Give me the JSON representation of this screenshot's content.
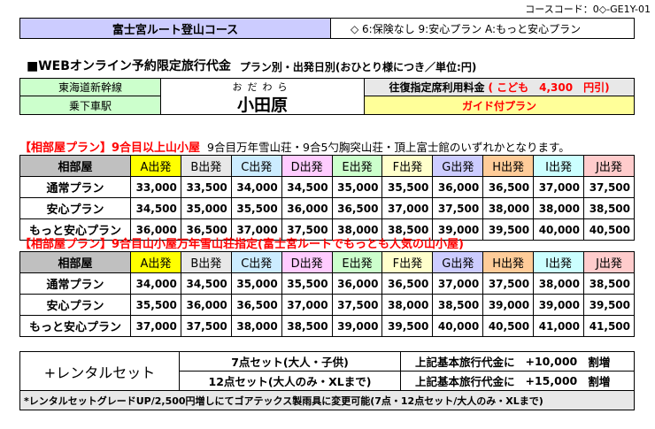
{
  "course_code": "コースコード：0◇-GE1Y-01",
  "course_title": "富士宮ルート登山コース",
  "course_notes": "◇ 6:保険なし 9:安心プラン A:もっと安心プラン",
  "price_heading": "■WEBオンライン予約限定旅行代金",
  "price_subheading": "プラン別・出発日別(おひとり様につき／単位:円)",
  "station": {
    "line_label": "東海道新幹線",
    "boarding_label": "乗下車駅",
    "furigana": "おだわら",
    "name": "小田原",
    "fare_label": "往復指定席利用料金",
    "child_discount": "( こども　4,300　円引)",
    "guide_plan": "ガイド付プラン"
  },
  "section1": {
    "title": "【相部屋プラン】9合目以上山小屋",
    "note": "9合目万年雪山荘・9合5勺胸突山荘・頂上富士館のいずれかとなります。"
  },
  "section2": {
    "title": "【相部屋プラン】9合目山小屋万年雪山荘指定(富士宮ルートでもっとも人気の山小屋)"
  },
  "table_header": {
    "corner": "相部屋",
    "departures": [
      "A出発",
      "B出発",
      "C出発",
      "D出発",
      "E出発",
      "F出発",
      "G出発",
      "H出発",
      "I出発",
      "J出発"
    ]
  },
  "departure_colors": [
    "#ffff00",
    "#e8e8e8",
    "#ccecff",
    "#ffccff",
    "#ccffcc",
    "#ffffcc",
    "#ccccff",
    "#ffcc99",
    "#ccffff",
    "#ffcccc"
  ],
  "table1": [
    {
      "plan": "通常プラン",
      "prices": [
        "33,000",
        "33,500",
        "34,000",
        "34,500",
        "35,000",
        "35,500",
        "36,000",
        "36,500",
        "37,000",
        "37,500"
      ]
    },
    {
      "plan": "安心プラン",
      "prices": [
        "34,500",
        "35,000",
        "35,500",
        "36,000",
        "36,500",
        "37,000",
        "37,500",
        "38,000",
        "38,000",
        "38,500"
      ]
    },
    {
      "plan": "もっと安心プラン",
      "prices": [
        "36,000",
        "36,500",
        "37,000",
        "37,500",
        "38,000",
        "38,500",
        "39,000",
        "39,500",
        "40,000",
        "40,500"
      ]
    }
  ],
  "table2": [
    {
      "plan": "通常プラン",
      "prices": [
        "34,000",
        "34,500",
        "35,000",
        "35,500",
        "36,000",
        "36,500",
        "37,000",
        "37,500",
        "38,000",
        "38,500"
      ]
    },
    {
      "plan": "安心プラン",
      "prices": [
        "35,500",
        "36,000",
        "36,500",
        "37,000",
        "37,500",
        "38,000",
        "38,500",
        "39,000",
        "39,000",
        "39,500"
      ]
    },
    {
      "plan": "もっと安心プラン",
      "prices": [
        "37,000",
        "37,500",
        "38,000",
        "38,500",
        "39,000",
        "39,500",
        "40,000",
        "40,500",
        "41,000",
        "41,500"
      ]
    }
  ],
  "rental": {
    "label": "+レンタルセット",
    "rows": [
      {
        "set": "7点セット(大人・子供)",
        "base": "上記基本旅行代金に",
        "amount": "+10,000",
        "suffix": "割増"
      },
      {
        "set": "12点セット(大人のみ・XLまで)",
        "base": "上記基本旅行代金に",
        "amount": "+15,000",
        "suffix": "割増"
      }
    ],
    "note": "*レンタルセットグレードUP/2,500円増しにてゴアテックス製雨具に変更可能(7点・12点セット/大人のみ・XLまで)"
  }
}
